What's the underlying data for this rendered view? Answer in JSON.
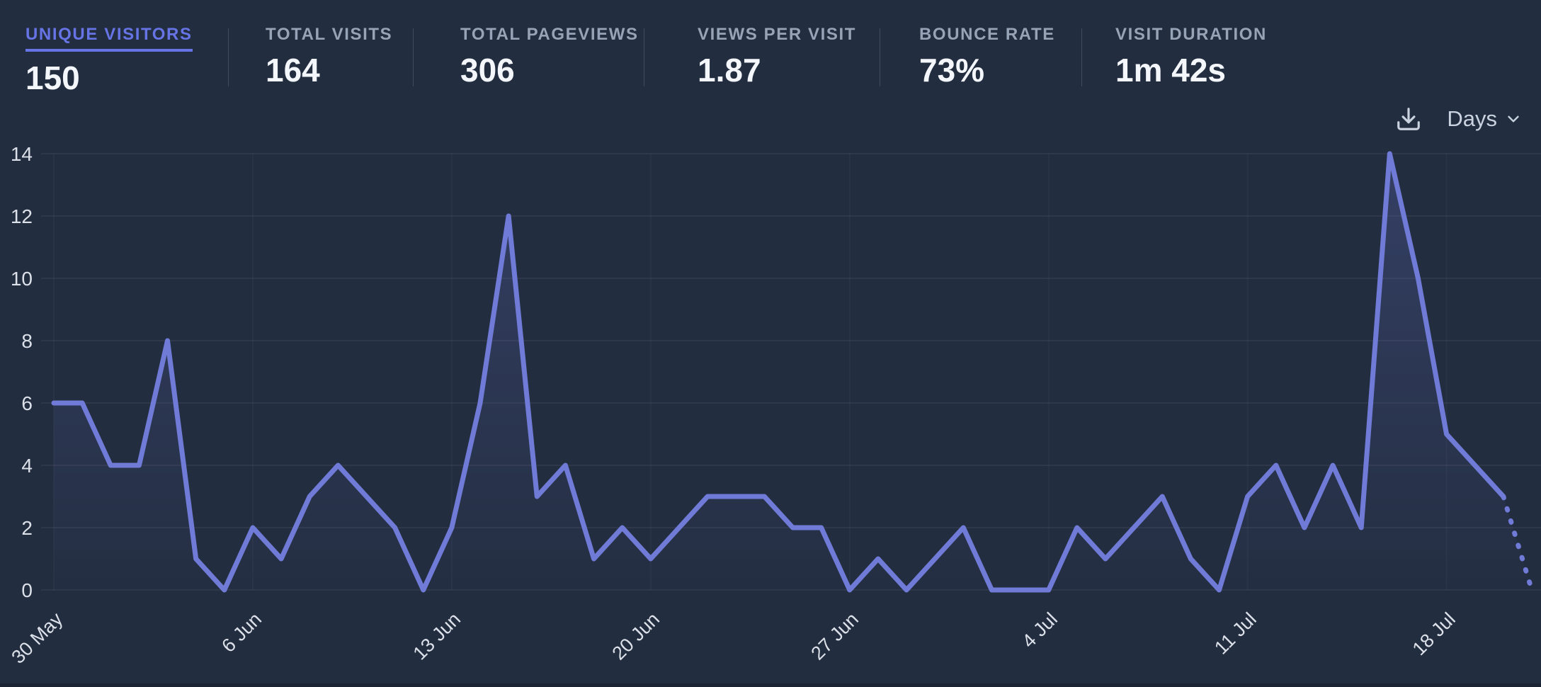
{
  "stats": {
    "items": [
      {
        "label": "UNIQUE VISITORS",
        "value": "150",
        "selected": true
      },
      {
        "label": "TOTAL VISITS",
        "value": "164",
        "selected": false
      },
      {
        "label": "TOTAL PAGEVIEWS",
        "value": "306",
        "selected": false
      },
      {
        "label": "VIEWS PER VISIT",
        "value": "1.87",
        "selected": false
      },
      {
        "label": "BOUNCE RATE",
        "value": "73%",
        "selected": false
      },
      {
        "label": "VISIT DURATION",
        "value": "1m 42s",
        "selected": false
      }
    ]
  },
  "toolbar": {
    "download_icon": "download-icon",
    "interval_label": "Days",
    "chevron_icon": "chevron-down-icon"
  },
  "colors": {
    "background": "#232d40",
    "accent": "#6674e5",
    "line": "#6f7bd6",
    "fill_top": "rgba(101,116,205,0.26)",
    "fill_bottom": "rgba(101,116,205,0.015)",
    "label": "#97a3b6",
    "value": "#f3f6fa",
    "tick": "#dce1e9",
    "divider": "#5a657a",
    "control": "#c9d2de",
    "gridline": "rgba(255,255,255,0.055)",
    "vgridline": "rgba(255,255,255,0.03)"
  },
  "chart_data": {
    "type": "line",
    "title": "Unique visitors per day",
    "xlabel": "",
    "ylabel": "",
    "ylim": [
      0,
      14
    ],
    "yticks": [
      0,
      2,
      4,
      6,
      8,
      10,
      12,
      14
    ],
    "grid": true,
    "legend": "none",
    "categories": [
      "30 May",
      "31 May",
      "1 Jun",
      "2 Jun",
      "3 Jun",
      "4 Jun",
      "5 Jun",
      "6 Jun",
      "7 Jun",
      "8 Jun",
      "9 Jun",
      "10 Jun",
      "11 Jun",
      "12 Jun",
      "13 Jun",
      "14 Jun",
      "15 Jun",
      "16 Jun",
      "17 Jun",
      "18 Jun",
      "19 Jun",
      "20 Jun",
      "21 Jun",
      "22 Jun",
      "23 Jun",
      "24 Jun",
      "25 Jun",
      "26 Jun",
      "27 Jun",
      "28 Jun",
      "29 Jun",
      "30 Jun",
      "1 Jul",
      "2 Jul",
      "3 Jul",
      "4 Jul",
      "5 Jul",
      "6 Jul",
      "7 Jul",
      "8 Jul",
      "9 Jul",
      "10 Jul",
      "11 Jul",
      "12 Jul",
      "13 Jul",
      "14 Jul",
      "15 Jul",
      "16 Jul",
      "17 Jul",
      "18 Jul",
      "19 Jul",
      "20 Jul",
      "21 Jul"
    ],
    "values": [
      6,
      6,
      4,
      4,
      8,
      1,
      0,
      2,
      1,
      3,
      4,
      3,
      2,
      0,
      2,
      6,
      12,
      3,
      4,
      1,
      2,
      1,
      2,
      3,
      3,
      3,
      2,
      2,
      0,
      1,
      0,
      1,
      2,
      0,
      0,
      0,
      2,
      1,
      2,
      3,
      1,
      0,
      3,
      4,
      2,
      4,
      2,
      14,
      10,
      5,
      4,
      3,
      0
    ],
    "x_tick_indices": [
      0,
      7,
      14,
      21,
      28,
      35,
      42,
      49
    ],
    "x_tick_labels": [
      "30 May",
      "6 Jun",
      "13 Jun",
      "20 Jun",
      "27 Jun",
      "4 Jul",
      "11 Jul",
      "18 Jul"
    ],
    "dashed_from_index": 51,
    "interval": "Days"
  }
}
